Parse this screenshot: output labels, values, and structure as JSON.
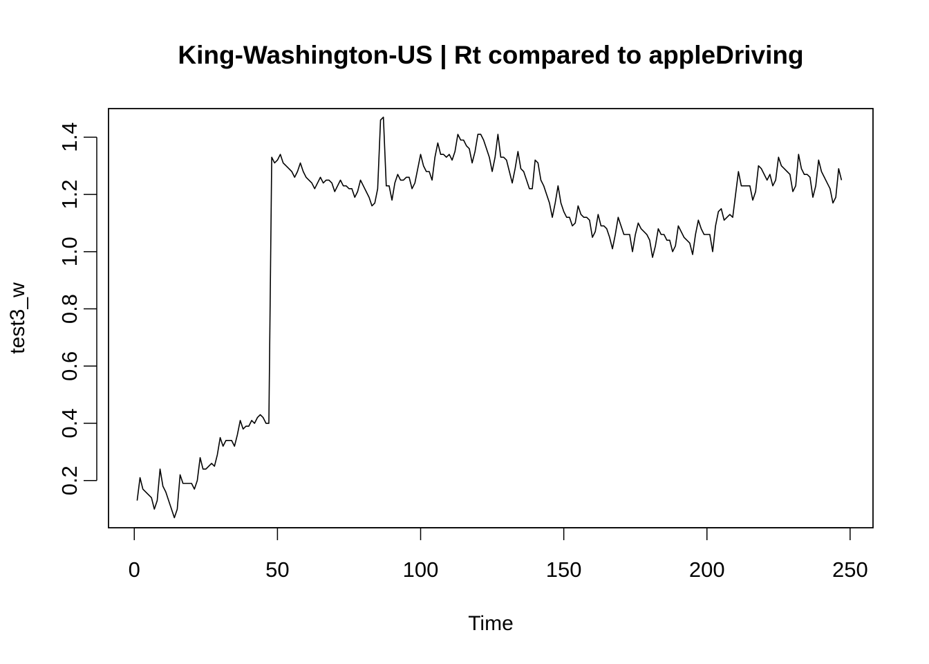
{
  "chart_data": {
    "type": "line",
    "title": "King-Washington-US | Rt compared to appleDriving",
    "xlabel": "Time",
    "ylabel": "test3_w",
    "xlim": [
      -9,
      258
    ],
    "ylim": [
      0.035,
      1.5
    ],
    "xticks": [
      0,
      50,
      100,
      150,
      200,
      250
    ],
    "yticks": [
      0.2,
      0.4,
      0.6,
      0.8,
      1.0,
      1.2,
      1.4
    ],
    "ytick_labels": [
      "0.2",
      "0.4",
      "0.6",
      "0.8",
      "1.0",
      "1.2",
      "1.4"
    ],
    "grid": false,
    "legend": "none",
    "line_color": "#000000",
    "series": [
      {
        "x_start": 1,
        "values": [
          0.13,
          0.21,
          0.17,
          0.16,
          0.15,
          0.14,
          0.1,
          0.13,
          0.24,
          0.18,
          0.16,
          0.13,
          0.1,
          0.07,
          0.1,
          0.22,
          0.19,
          0.19,
          0.19,
          0.19,
          0.17,
          0.2,
          0.28,
          0.24,
          0.24,
          0.25,
          0.26,
          0.25,
          0.29,
          0.35,
          0.32,
          0.34,
          0.34,
          0.34,
          0.32,
          0.36,
          0.41,
          0.38,
          0.39,
          0.39,
          0.41,
          0.4,
          0.42,
          0.43,
          0.42,
          0.4,
          0.4,
          1.33,
          1.31,
          1.32,
          1.34,
          1.31,
          1.3,
          1.29,
          1.28,
          1.26,
          1.28,
          1.31,
          1.28,
          1.26,
          1.25,
          1.24,
          1.22,
          1.24,
          1.26,
          1.24,
          1.25,
          1.25,
          1.24,
          1.21,
          1.23,
          1.25,
          1.23,
          1.23,
          1.22,
          1.22,
          1.19,
          1.21,
          1.25,
          1.23,
          1.21,
          1.19,
          1.16,
          1.17,
          1.22,
          1.46,
          1.47,
          1.23,
          1.23,
          1.18,
          1.24,
          1.27,
          1.25,
          1.25,
          1.26,
          1.26,
          1.22,
          1.24,
          1.29,
          1.34,
          1.3,
          1.28,
          1.28,
          1.25,
          1.33,
          1.38,
          1.34,
          1.34,
          1.33,
          1.34,
          1.32,
          1.35,
          1.41,
          1.39,
          1.39,
          1.37,
          1.36,
          1.31,
          1.35,
          1.41,
          1.41,
          1.39,
          1.36,
          1.33,
          1.28,
          1.33,
          1.41,
          1.33,
          1.33,
          1.32,
          1.28,
          1.24,
          1.29,
          1.35,
          1.29,
          1.28,
          1.25,
          1.22,
          1.22,
          1.32,
          1.31,
          1.25,
          1.23,
          1.2,
          1.17,
          1.12,
          1.17,
          1.23,
          1.17,
          1.14,
          1.12,
          1.12,
          1.09,
          1.1,
          1.16,
          1.13,
          1.12,
          1.12,
          1.11,
          1.05,
          1.07,
          1.13,
          1.09,
          1.09,
          1.08,
          1.05,
          1.01,
          1.06,
          1.12,
          1.09,
          1.06,
          1.06,
          1.06,
          1.0,
          1.06,
          1.1,
          1.08,
          1.07,
          1.06,
          1.04,
          0.98,
          1.02,
          1.08,
          1.06,
          1.06,
          1.04,
          1.04,
          1.0,
          1.02,
          1.09,
          1.07,
          1.05,
          1.04,
          1.03,
          0.99,
          1.06,
          1.11,
          1.08,
          1.06,
          1.06,
          1.06,
          1.0,
          1.09,
          1.14,
          1.15,
          1.11,
          1.12,
          1.13,
          1.12,
          1.2,
          1.28,
          1.23,
          1.23,
          1.23,
          1.23,
          1.18,
          1.21,
          1.3,
          1.29,
          1.27,
          1.25,
          1.27,
          1.23,
          1.25,
          1.33,
          1.3,
          1.29,
          1.28,
          1.27,
          1.21,
          1.23,
          1.34,
          1.29,
          1.27,
          1.27,
          1.26,
          1.19,
          1.23,
          1.32,
          1.28,
          1.26,
          1.24,
          1.22,
          1.17,
          1.19,
          1.29,
          1.25
        ]
      }
    ]
  }
}
